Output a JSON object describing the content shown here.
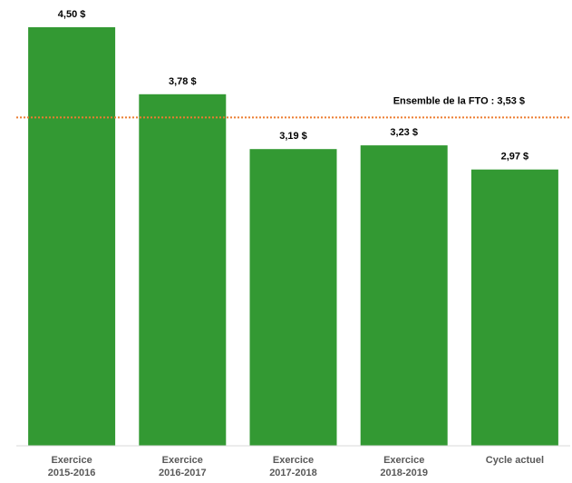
{
  "chart_data": {
    "type": "bar",
    "categories": [
      [
        "Exercice",
        "2015-2016"
      ],
      [
        "Exercice",
        "2016-2017"
      ],
      [
        "Exercice",
        "2017-2018"
      ],
      [
        "Exercice",
        "2018-2019"
      ],
      [
        "Cycle actuel"
      ]
    ],
    "values": [
      4.5,
      3.78,
      3.19,
      3.23,
      2.97
    ],
    "data_labels": [
      "4,50 $",
      "3,78 $",
      "3,19 $",
      "3,23 $",
      "2,97 $"
    ],
    "reference_line": {
      "value": 3.53,
      "label": "Ensemble de la FTO : 3,53 $",
      "style": "dotted",
      "color": "#ED7D31"
    },
    "ylim": [
      0,
      4.5
    ],
    "bar_color": "#339933",
    "grid": false,
    "legend": "none",
    "title": "",
    "xlabel": "",
    "ylabel": ""
  }
}
